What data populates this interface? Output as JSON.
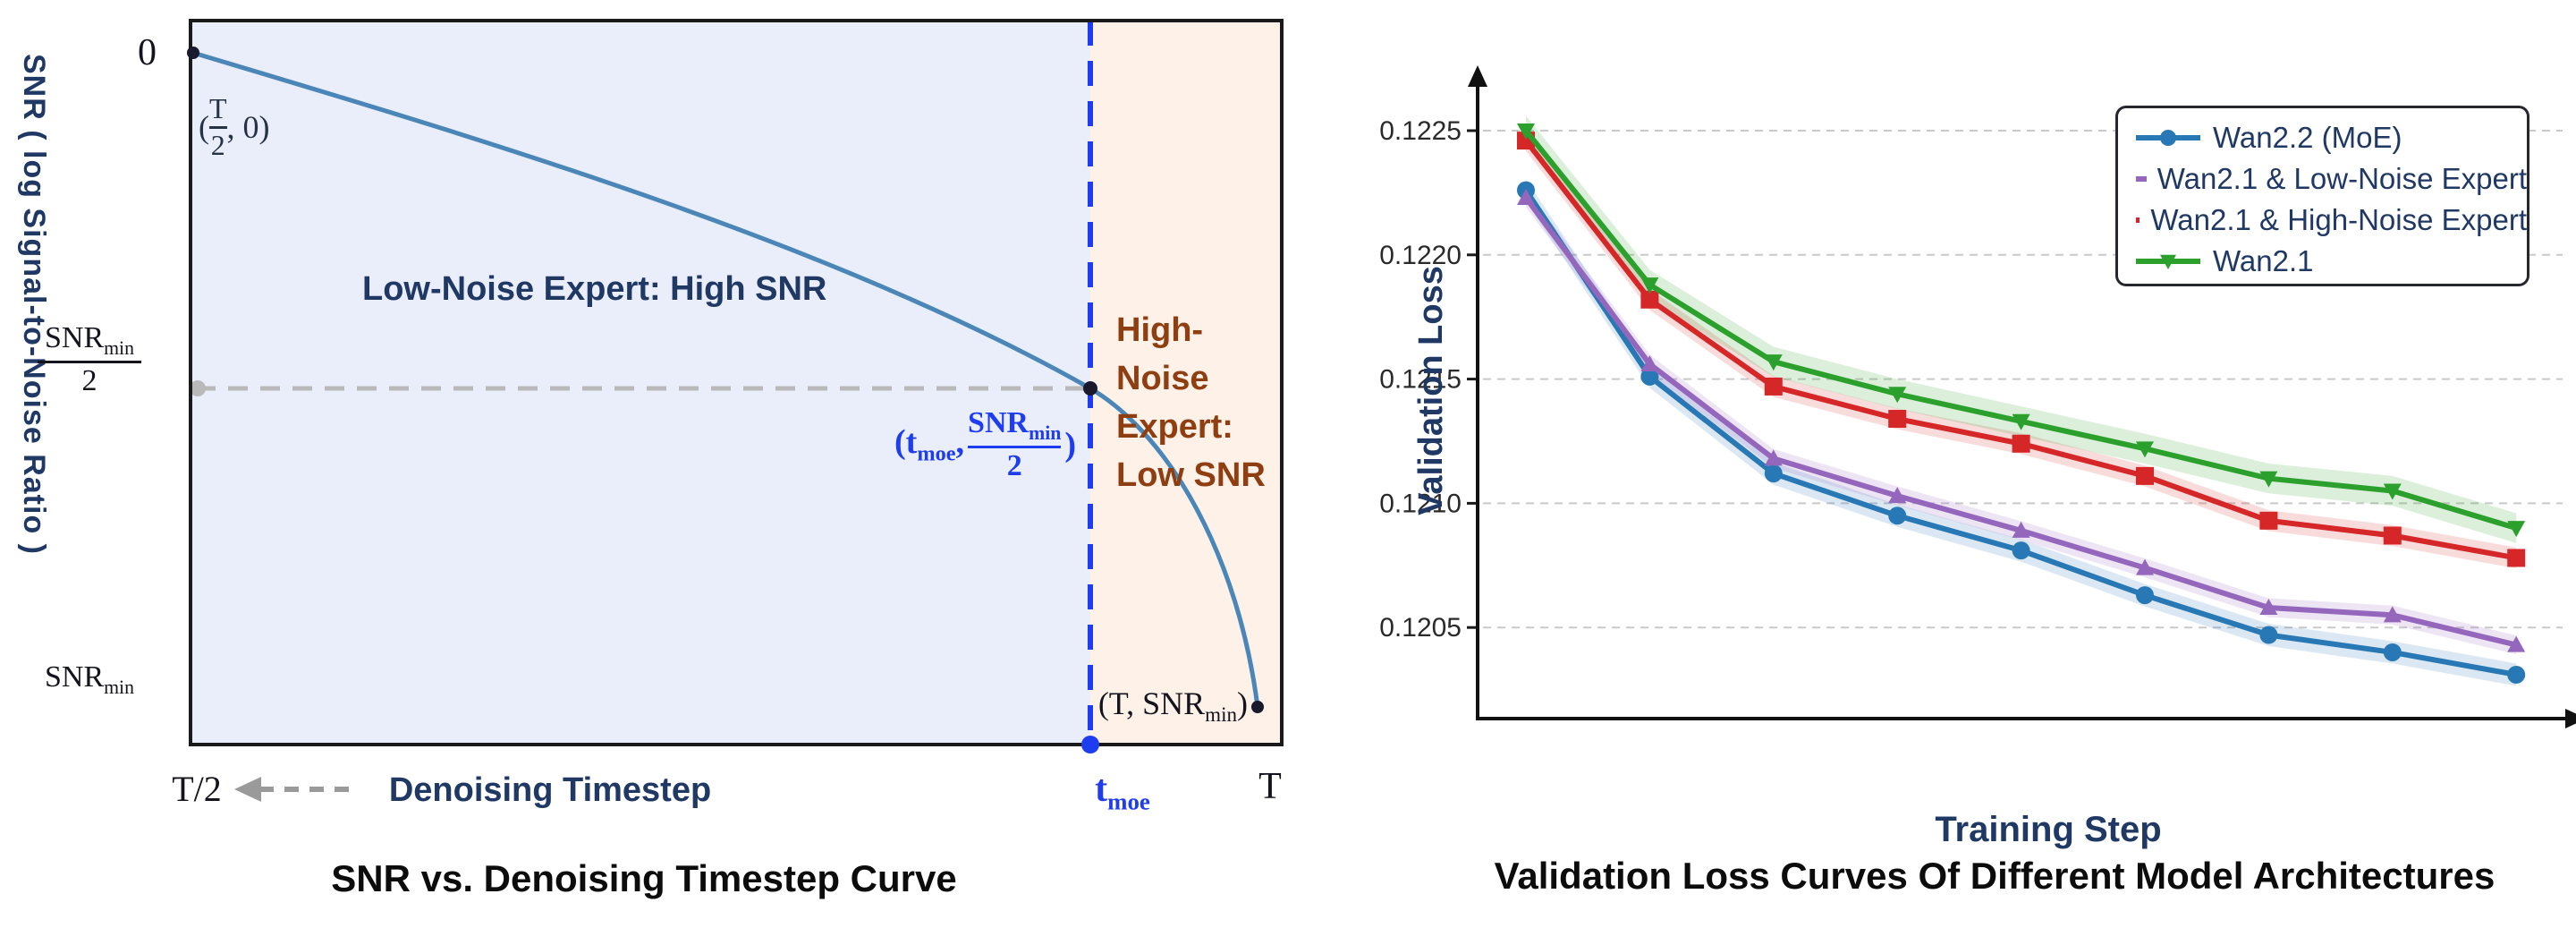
{
  "colors": {
    "navy_text": "#1f3864",
    "left_curve": "#4a86b8",
    "moe_blue": "#1e3cf0",
    "brown_text": "#8e3e10",
    "low_region_fill": "#eaeefa",
    "high_region_fill": "#fdf1e8",
    "gray_dashed": "#b9b9b9",
    "series_blue": "#2878b5",
    "series_purple": "#9467bd",
    "series_red": "#d62728",
    "series_green": "#2ca02c"
  },
  "left_chart": {
    "title": "SNR vs. Denoising Timestep Curve",
    "y_axis_label": "SNR ( log Signal-to-Noise Ratio )",
    "x_axis_label": "Denoising Timestep",
    "ticks": {
      "zero": "0",
      "snr_min_half_num_base": "SNR",
      "snr_min_half_num_sub": "min",
      "snr_min_half_den": "2",
      "snr_min_base": "SNR",
      "snr_min_sub": "min"
    },
    "x_ticks": {
      "t_half": "T/2",
      "t_moe_base": "t",
      "t_moe_sub": "moe",
      "t_end": "T"
    },
    "regions": {
      "low_label": "Low-Noise Expert: High SNR",
      "high_label_line1": "High-",
      "high_label_line2": "Noise",
      "high_label_line3": "Expert:",
      "high_label_line4": "Low SNR"
    },
    "annotations": {
      "start_open": "(",
      "start_num": "T",
      "start_den": "2",
      "start_close": ", 0)",
      "moe_open": "(t",
      "moe_sub": "moe",
      "moe_comma": ", ",
      "moe_num_base": "SNR",
      "moe_num_sub": "min",
      "moe_den": "2",
      "moe_close": ")",
      "end_open": "(T, SNR",
      "end_sub": "min",
      "end_close": ")"
    }
  },
  "right_chart": {
    "title": "Validation Loss Curves Of Different Model Architectures",
    "y_axis_label": "Validation Loss",
    "x_axis_label": "Training Step"
  },
  "chart_data": [
    {
      "type": "line",
      "title": "SNR vs. Denoising Timestep Curve",
      "xlabel": "Denoising Timestep",
      "ylabel": "SNR ( log Signal-to-Noise Ratio )",
      "description": "Schematic: SNR decreases from 0 at t=T/2 to SNR_min at t=T; expert switch at t_moe where SNR = SNR_min/2",
      "key_points": [
        {
          "x": "T/2",
          "y": "0"
        },
        {
          "x": "t_moe",
          "y": "SNR_min/2"
        },
        {
          "x": "T",
          "y": "SNR_min"
        }
      ],
      "regions": [
        {
          "label": "Low-Noise Expert: High SNR",
          "range": "T/2 to t_moe"
        },
        {
          "label": "High-Noise Expert: Low SNR",
          "range": "t_moe to T"
        }
      ]
    },
    {
      "type": "line",
      "title": "Validation Loss Curves Of Different Model Architectures",
      "xlabel": "Training Step",
      "ylabel": "Validation Loss",
      "x": [
        1,
        2,
        3,
        4,
        5,
        6,
        7,
        8,
        9
      ],
      "yticks": [
        0.1225,
        0.122,
        0.1215,
        0.121,
        0.1205
      ],
      "ylim": [
        0.12005,
        0.12265
      ],
      "grid": "dashed-horizontal",
      "legend_position": "top-right",
      "series": [
        {
          "name": "Wan2.2 (MoE)",
          "color": "#2878b5",
          "marker": "circle",
          "values": [
            0.12226,
            0.12151,
            0.12112,
            0.12095,
            0.12081,
            0.12063,
            0.12047,
            0.1204,
            0.12031
          ],
          "band": 4.5e-05
        },
        {
          "name": "Wan2.1 & Low-Noise Expert",
          "color": "#9467bd",
          "marker": "triangle-up",
          "values": [
            0.12223,
            0.12156,
            0.12118,
            0.12103,
            0.12089,
            0.12074,
            0.12058,
            0.12055,
            0.12043
          ],
          "band": 3.8e-05
        },
        {
          "name": "Wan2.1 & High-Noise Expert",
          "color": "#d62728",
          "marker": "square",
          "values": [
            0.12246,
            0.12182,
            0.12147,
            0.12134,
            0.12124,
            0.12111,
            0.12093,
            0.12087,
            0.12078
          ],
          "band": 4.2e-05
        },
        {
          "name": "Wan2.1",
          "color": "#2ca02c",
          "marker": "triangle-down",
          "values": [
            0.1225,
            0.12188,
            0.12157,
            0.12144,
            0.12133,
            0.12122,
            0.1211,
            0.12105,
            0.1209
          ],
          "band": 6e-05
        }
      ]
    }
  ]
}
